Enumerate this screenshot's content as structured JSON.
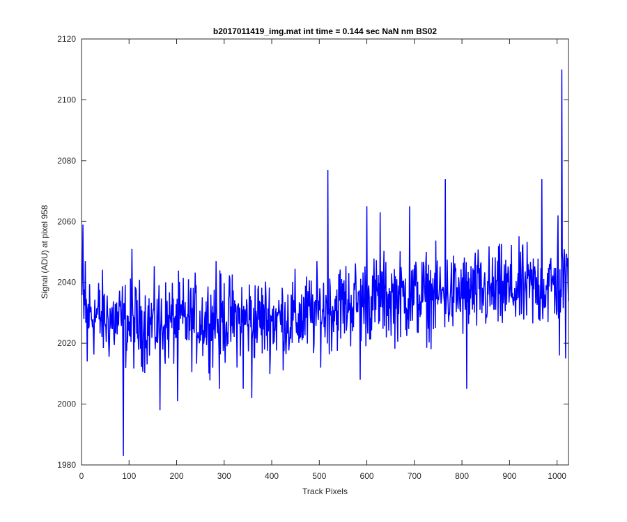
{
  "chart_data": {
    "type": "line",
    "title": "b2017011419_img.mat int time = 0.144 sec  NaN nm BS02",
    "xlabel": "Track Pixels",
    "ylabel": "Signal (ADU) at pixel 958",
    "xlim": [
      0,
      1024
    ],
    "ylim": [
      1980,
      2120
    ],
    "xticks": [
      0,
      100,
      200,
      300,
      400,
      500,
      600,
      700,
      800,
      900,
      1000
    ],
    "yticks": [
      1980,
      2000,
      2020,
      2040,
      2060,
      2080,
      2100,
      2120
    ],
    "grid": false,
    "series_color": "#0000ff",
    "baseline": [
      [
        0,
        2035
      ],
      [
        10,
        2030
      ],
      [
        100,
        2026
      ],
      [
        300,
        2028
      ],
      [
        450,
        2028
      ],
      [
        500,
        2030
      ],
      [
        550,
        2033
      ],
      [
        650,
        2035
      ],
      [
        800,
        2036
      ],
      [
        950,
        2038
      ],
      [
        1024,
        2040
      ]
    ],
    "noise_amplitude": 7,
    "features": [
      {
        "x": 3,
        "y": 2059
      },
      {
        "x": 5,
        "y": 2028
      },
      {
        "x": 8,
        "y": 2047
      },
      {
        "x": 12,
        "y": 2014
      },
      {
        "x": 88,
        "y": 1983
      },
      {
        "x": 106,
        "y": 2051
      },
      {
        "x": 165,
        "y": 1998
      },
      {
        "x": 202,
        "y": 2001
      },
      {
        "x": 283,
        "y": 2047
      },
      {
        "x": 290,
        "y": 2005
      },
      {
        "x": 340,
        "y": 2005
      },
      {
        "x": 358,
        "y": 2002
      },
      {
        "x": 518,
        "y": 2077
      },
      {
        "x": 586,
        "y": 2008
      },
      {
        "x": 600,
        "y": 2065
      },
      {
        "x": 628,
        "y": 2063
      },
      {
        "x": 690,
        "y": 2065
      },
      {
        "x": 765,
        "y": 2074
      },
      {
        "x": 810,
        "y": 2005
      },
      {
        "x": 968,
        "y": 2074
      },
      {
        "x": 1002,
        "y": 2062
      },
      {
        "x": 1005,
        "y": 2016
      },
      {
        "x": 1010,
        "y": 2110
      },
      {
        "x": 1018,
        "y": 2015
      },
      {
        "x": 1022,
        "y": 2048
      }
    ],
    "n_points": 1024
  }
}
